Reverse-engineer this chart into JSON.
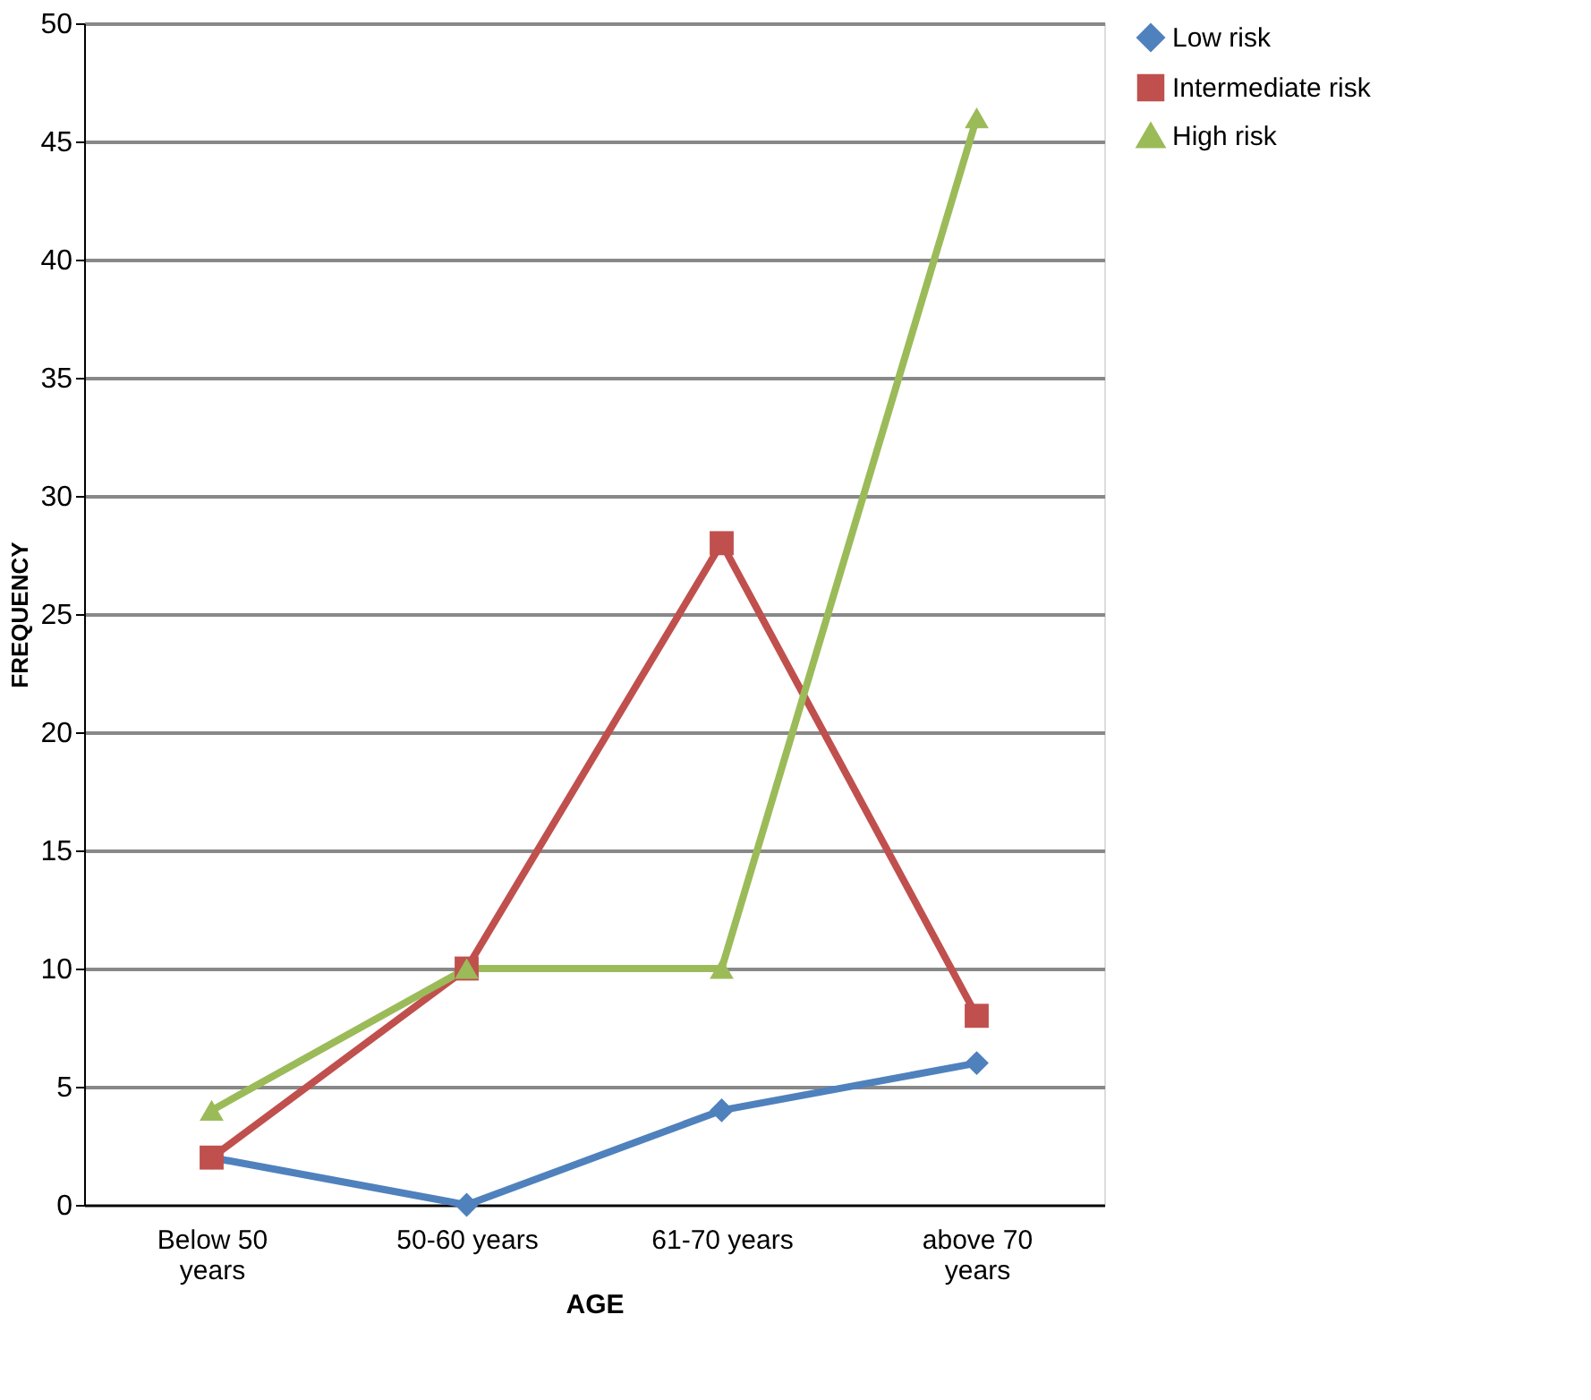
{
  "chart_data": {
    "type": "line",
    "xlabel": "AGE",
    "ylabel": "FREQUENCY",
    "categories": [
      "Below 50 years",
      "50-60 years",
      "61-70 years",
      "above 70 years"
    ],
    "series": [
      {
        "name": "Low risk",
        "color": "#4f81bd",
        "marker": "diamond",
        "values": [
          2,
          0,
          4,
          6
        ]
      },
      {
        "name": "Intermediate risk",
        "color": "#c0504d",
        "marker": "square",
        "values": [
          2,
          10,
          28,
          8
        ]
      },
      {
        "name": "High risk",
        "color": "#9bbb59",
        "marker": "triangle",
        "values": [
          4,
          10,
          10,
          46
        ]
      }
    ],
    "ylim": [
      0,
      50
    ],
    "yticks": [
      0,
      5,
      10,
      15,
      20,
      25,
      30,
      35,
      40,
      45,
      50
    ],
    "grid": "y",
    "legend": "right",
    "line_style": "solid"
  }
}
